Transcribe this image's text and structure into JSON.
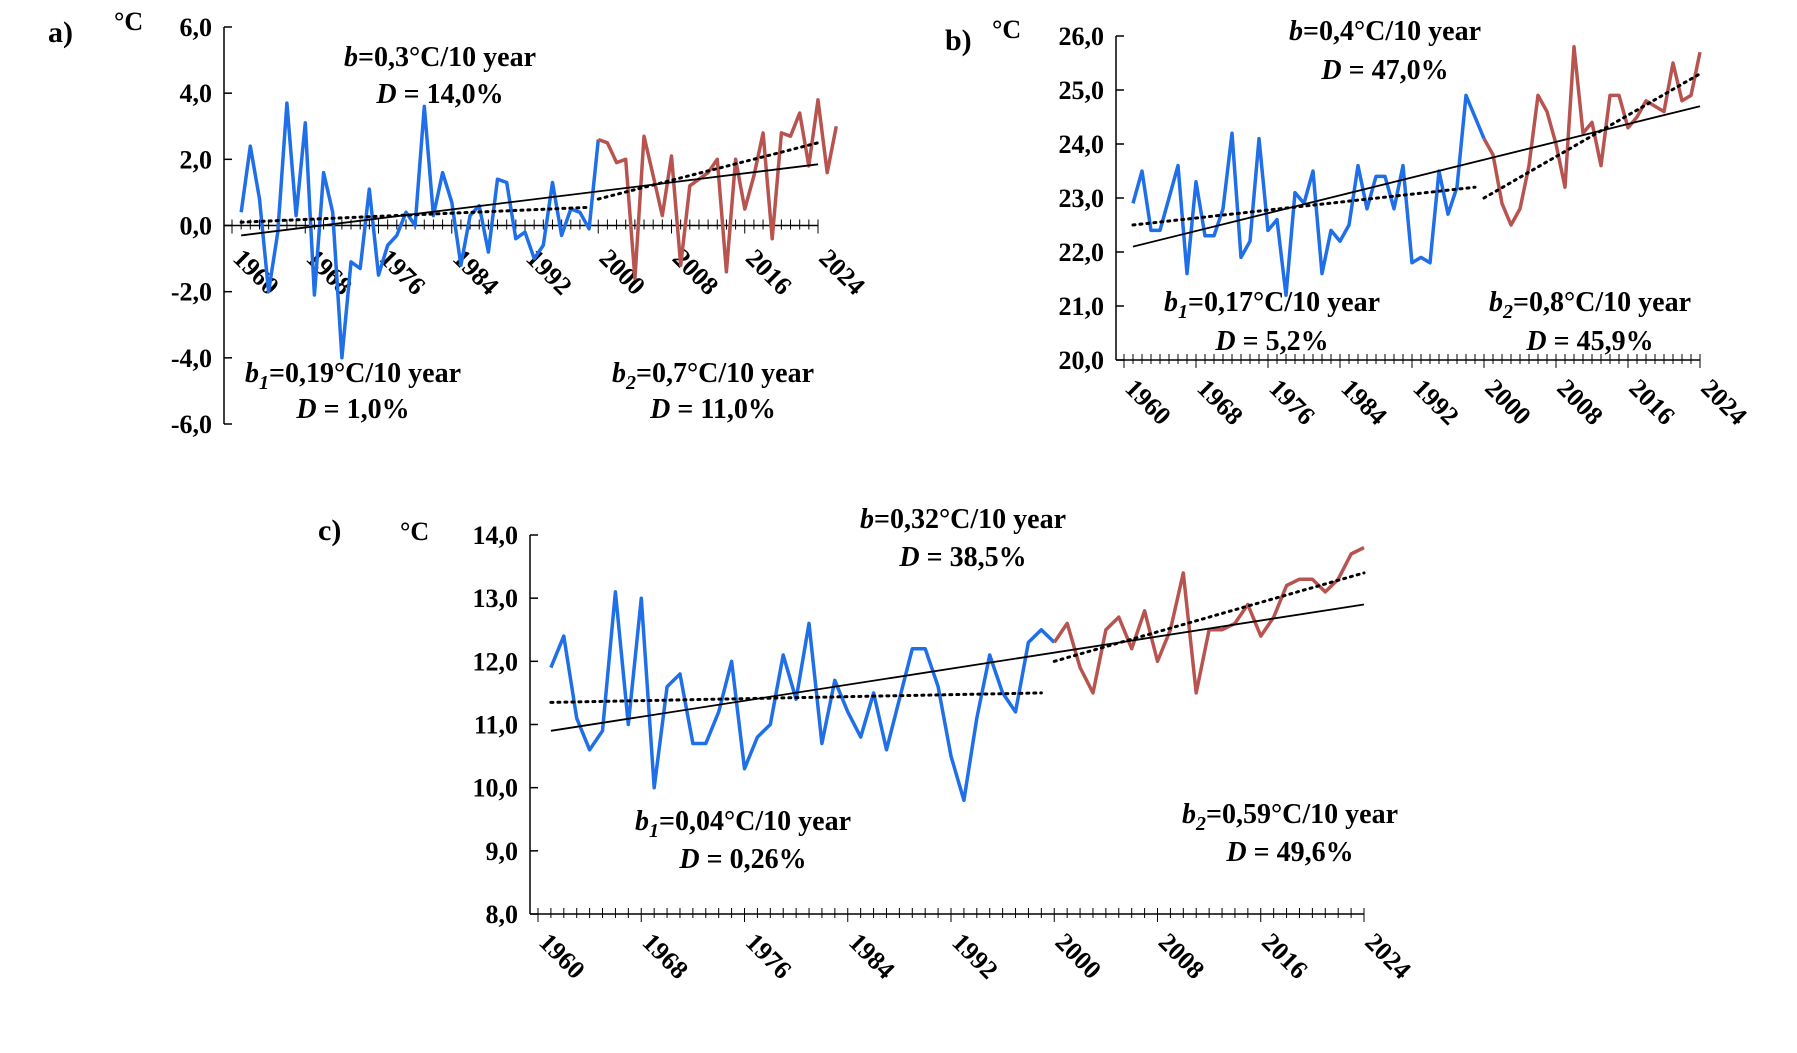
{
  "colors": {
    "period1": "#1f6fe8",
    "period2": "#b85450",
    "axis": "#000000",
    "trend": "#000000"
  },
  "chart_data": [
    {
      "type": "line",
      "panel": "a)",
      "unit": "°C",
      "ylim": [
        -6,
        6
      ],
      "yticks": [
        "6,0",
        "4,0",
        "2,0",
        "0,0",
        "-2,0",
        "-4,0",
        "-6,0"
      ],
      "xlim": [
        1960,
        2024
      ],
      "xticks": [
        "1960",
        "1968",
        "1976",
        "1984",
        "1992",
        "2000",
        "2008",
        "2016",
        "2024"
      ],
      "annotations": {
        "overall_b": "b=0,3°C/10 year",
        "overall_D": "D = 14,0%",
        "p1_b": "b1=0,19°C/10 year",
        "p1_D": "D = 1,0%",
        "p2_b": "b2=0,7°C/10 year",
        "p2_D": "D = 11,0%"
      },
      "series": [
        {
          "x_start": 1961,
          "values": [
            0.4,
            2.4,
            0.8,
            -2.0,
            -0.2,
            3.7,
            0.3,
            3.1,
            -2.1,
            1.6,
            0.4,
            -4.0,
            -1.1,
            -1.3,
            1.1,
            -1.5,
            -0.6,
            -0.3,
            0.4,
            0.0,
            3.6,
            0.3,
            1.6,
            0.7,
            -1.2,
            0.3,
            0.6,
            -0.8,
            1.4,
            1.3,
            -0.4,
            -0.2,
            -1.0,
            -0.6,
            1.3,
            -0.3,
            0.5,
            0.4,
            -0.1,
            2.6
          ]
        },
        {
          "x_start": 2000,
          "values": [
            2.6,
            2.5,
            1.9,
            2.0,
            -1.6,
            2.7,
            1.5,
            0.3,
            2.1,
            -1.2,
            1.2,
            1.4,
            1.6,
            2.0,
            -1.4,
            2.0,
            0.5,
            1.5,
            2.8,
            -0.4,
            2.8,
            2.7,
            3.4,
            1.8,
            3.8,
            1.6,
            3.0
          ]
        }
      ],
      "trend": [
        -0.3,
        1.85
      ],
      "trend1": [
        0.1,
        0.55
      ],
      "trend2": [
        0.8,
        2.5
      ]
    },
    {
      "type": "line",
      "panel": "b)",
      "unit": "°C",
      "ylim": [
        20,
        26
      ],
      "yticks": [
        "26,0",
        "25,0",
        "24,0",
        "23,0",
        "22,0",
        "21,0",
        "20,0"
      ],
      "xlim": [
        1960,
        2024
      ],
      "xticks": [
        "1960",
        "1968",
        "1976",
        "1984",
        "1992",
        "2000",
        "2008",
        "2016",
        "2024"
      ],
      "annotations": {
        "overall_b": "b=0,4°C/10 year",
        "overall_D": "D = 47,0%",
        "p1_b": "b1=0,17°C/10 year",
        "p1_D": "D = 5,2%",
        "p2_b": "b2=0,8°C/10 year",
        "p2_D": "D = 45,9%"
      },
      "series": [
        {
          "x_start": 1961,
          "values": [
            22.9,
            23.5,
            22.4,
            22.4,
            23.0,
            23.6,
            21.6,
            23.3,
            22.3,
            22.3,
            22.8,
            24.2,
            21.9,
            22.2,
            24.1,
            22.4,
            22.6,
            21.2,
            23.1,
            22.9,
            23.5,
            21.6,
            22.4,
            22.2,
            22.5,
            23.6,
            22.8,
            23.4,
            23.4,
            22.8,
            23.6,
            21.8,
            21.9,
            21.8,
            23.5,
            22.7,
            23.2,
            24.9,
            24.5,
            24.1
          ]
        },
        {
          "x_start": 2000,
          "values": [
            24.1,
            23.8,
            22.9,
            22.5,
            22.8,
            23.6,
            24.9,
            24.6,
            24.0,
            23.2,
            25.8,
            24.2,
            24.4,
            23.6,
            24.9,
            24.9,
            24.3,
            24.5,
            24.8,
            24.7,
            24.6,
            25.5,
            24.8,
            24.9,
            25.7
          ]
        }
      ],
      "trend": [
        22.1,
        24.7
      ],
      "trend1": [
        22.5,
        23.2
      ],
      "trend2": [
        23.0,
        25.3
      ]
    },
    {
      "type": "line",
      "panel": "c)",
      "unit": "°C",
      "ylim": [
        8,
        14
      ],
      "yticks": [
        "14,0",
        "13,0",
        "12,0",
        "11,0",
        "10,0",
        "9,0",
        "8,0"
      ],
      "xlim": [
        1960,
        2024
      ],
      "xticks": [
        "1960",
        "1968",
        "1976",
        "1984",
        "1992",
        "2000",
        "2008",
        "2016",
        "2024"
      ],
      "annotations": {
        "overall_b": "b=0,32°C/10 year",
        "overall_D": "D = 38,5%",
        "p1_b": "b1=0,04°C/10 year",
        "p1_D": "D = 0,26%",
        "p2_b": "b2=0,59°C/10 year",
        "p2_D": "D = 49,6%"
      },
      "series": [
        {
          "x_start": 1961,
          "values": [
            11.9,
            12.4,
            11.1,
            10.6,
            10.9,
            13.1,
            11.0,
            13.0,
            10.0,
            11.6,
            11.8,
            10.7,
            10.7,
            11.2,
            12.0,
            10.3,
            10.8,
            11.0,
            12.1,
            11.4,
            12.6,
            10.7,
            11.7,
            11.2,
            10.8,
            11.5,
            10.6,
            11.4,
            12.2,
            12.2,
            11.6,
            10.5,
            9.8,
            11.1,
            12.1,
            11.5,
            11.2,
            12.3,
            12.5,
            12.3
          ]
        },
        {
          "x_start": 2000,
          "values": [
            12.3,
            12.6,
            11.9,
            11.5,
            12.5,
            12.7,
            12.2,
            12.8,
            12.0,
            12.5,
            13.4,
            11.5,
            12.5,
            12.5,
            12.6,
            12.9,
            12.4,
            12.7,
            13.2,
            13.3,
            13.3,
            13.1,
            13.3,
            13.7,
            13.8
          ]
        }
      ],
      "trend": [
        10.9,
        12.9
      ],
      "trend1": [
        11.35,
        11.5
      ],
      "trend2": [
        12.0,
        13.4
      ]
    }
  ]
}
